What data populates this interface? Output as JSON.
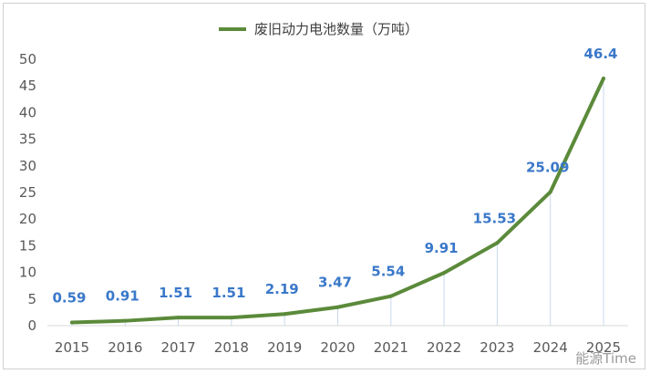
{
  "chart_data": {
    "type": "line",
    "title": "",
    "xlabel": "",
    "ylabel": "",
    "categories": [
      "2015",
      "2016",
      "2017",
      "2018",
      "2019",
      "2020",
      "2021",
      "2022",
      "2023",
      "2024",
      "2025"
    ],
    "series": [
      {
        "name": "废旧动力电池数量（万吨）",
        "values": [
          0.59,
          0.91,
          1.51,
          1.51,
          2.19,
          3.47,
          5.54,
          9.91,
          15.53,
          25.09,
          46.4
        ],
        "labels": [
          "0.59",
          "0.91",
          "1.51",
          "1.51",
          "2.19",
          "3.47",
          "5.54",
          "9.91",
          "15.53",
          "25.09",
          "46.4"
        ]
      }
    ],
    "ylim": [
      0,
      50
    ],
    "yticks": [
      0,
      5,
      10,
      15,
      20,
      25,
      30,
      35,
      40,
      45,
      50
    ],
    "grid": false,
    "legend_position": "top-center",
    "colors": {
      "line": "#5b8a3a",
      "label": "#3a78c9",
      "axis": "#d9d9d9",
      "tick": "#595959"
    }
  },
  "watermark": "能源Time"
}
